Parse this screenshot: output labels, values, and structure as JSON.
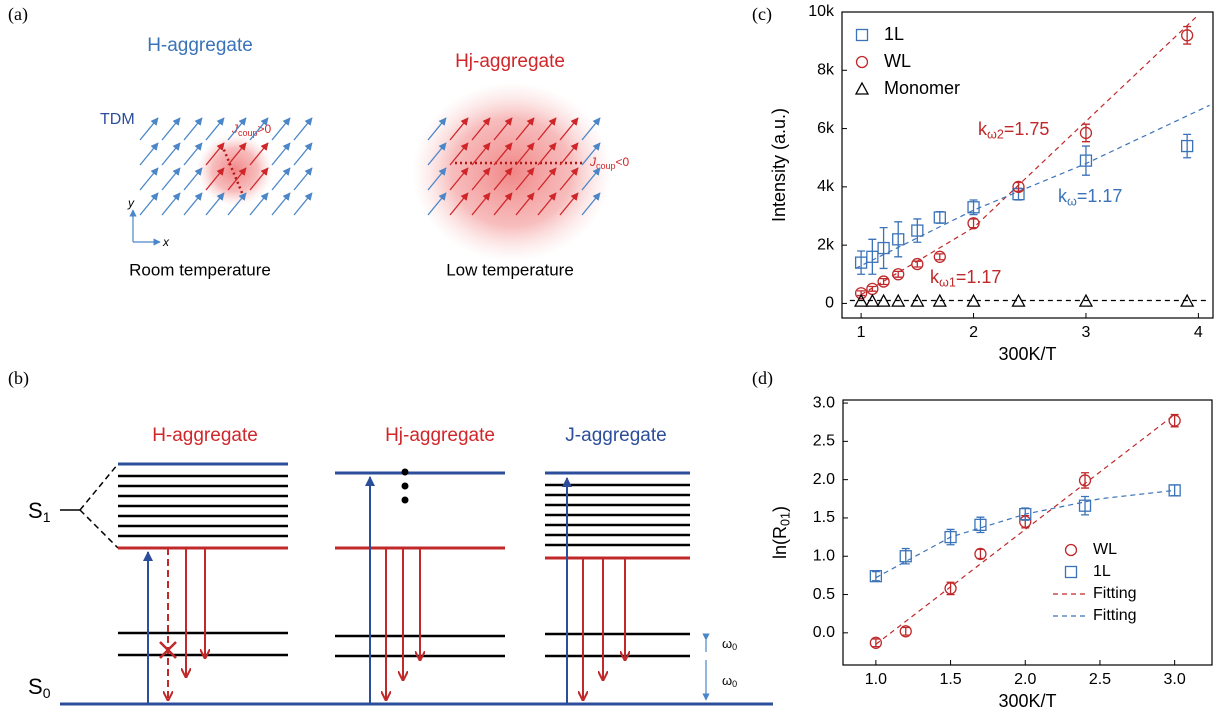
{
  "panels": {
    "a": "(a)",
    "b": "(b)",
    "c": "(c)",
    "d": "(d)"
  },
  "panel_a": {
    "left_title": "H-aggregate",
    "right_title": "Hj-aggregate",
    "tdm": "TDM",
    "j_left": {
      "j": "J",
      "sub": "coup",
      "rel": ">0"
    },
    "j_right": {
      "j": "J",
      "sub": "coup",
      "rel": "<0"
    },
    "axis_y": "y",
    "axis_x": "x",
    "left_caption": "Room temperature",
    "right_caption": "Low temperature"
  },
  "panel_b": {
    "titles": [
      "H-aggregate",
      "Hj-aggregate",
      "J-aggregate"
    ],
    "s1": {
      "s": "S",
      "sub": "1"
    },
    "s0": {
      "s": "S",
      "sub": "0"
    },
    "omega": {
      "w": "ω",
      "sub": "0"
    }
  },
  "chart_data": [
    {
      "type": "scatter",
      "xlabel": "300K/T",
      "ylabel": "Intensity (a.u.)",
      "xlim": [
        0.83,
        4.13
      ],
      "ylim": [
        -500,
        10000
      ],
      "xticks": [
        1,
        2,
        3,
        4
      ],
      "yticks": [
        0,
        {
          "value": 2000,
          "label": "2k"
        },
        {
          "value": 4000,
          "label": "4k"
        },
        {
          "value": 6000,
          "label": "6k"
        },
        {
          "value": 8000,
          "label": "8k"
        },
        {
          "value": 10000,
          "label": "10k"
        }
      ],
      "legend": "upper left",
      "series": [
        {
          "name": "1L",
          "color": "#3b73b9",
          "marker": "square",
          "x": [
            1,
            1.1,
            1.2,
            1.33,
            1.5,
            1.7,
            2,
            2.4,
            3,
            3.9
          ],
          "values": [
            1400,
            1600,
            1900,
            2200,
            2500,
            2950,
            3300,
            3750,
            4900,
            5400
          ],
          "errors": [
            400,
            600,
            700,
            600,
            400,
            200,
            250,
            200,
            500,
            400
          ]
        },
        {
          "name": "WL",
          "color": "#c0282a",
          "marker": "circle",
          "x": [
            1,
            1.1,
            1.2,
            1.33,
            1.5,
            1.7,
            2,
            2.4,
            3,
            3.9
          ],
          "values": [
            350,
            500,
            750,
            1000,
            1350,
            1600,
            2750,
            4000,
            5850,
            9200
          ],
          "errors": [
            80,
            80,
            100,
            100,
            100,
            100,
            150,
            150,
            300,
            300
          ]
        },
        {
          "name": "Monomer",
          "color": "#000000",
          "marker": "triangle",
          "x": [
            1,
            1.1,
            1.2,
            1.33,
            1.5,
            1.7,
            2,
            2.4,
            3,
            3.9
          ],
          "values": [
            80,
            80,
            80,
            80,
            80,
            80,
            80,
            80,
            80,
            80
          ]
        }
      ],
      "fit_lines": [
        {
          "color": "#c0282a",
          "x": [
            1,
            2,
            4
          ],
          "values": [
            300,
            2600,
            9900
          ]
        },
        {
          "color": "#3b73b9",
          "x": [
            0.95,
            2,
            3,
            4.1
          ],
          "values": [
            1200,
            3200,
            4800,
            6800
          ]
        },
        {
          "color": "#000000",
          "x": [
            0.9,
            4.1
          ],
          "values": [
            100,
            100
          ]
        }
      ],
      "annotations": [
        {
          "base": "k",
          "sub": "ω2",
          "tail": "=1.75",
          "color": "#c0282a"
        },
        {
          "base": "k",
          "sub": "ω",
          "tail": "=1.17",
          "color": "#3b73b9"
        },
        {
          "base": "k",
          "sub": "ω1",
          "tail": "=1.17",
          "color": "#c0282a"
        }
      ]
    },
    {
      "type": "scatter",
      "xlabel": "300K/T",
      "ylabel": {
        "base": "ln(R",
        "sub": "01",
        "tail": ")"
      },
      "xlim": [
        0.78,
        3.25
      ],
      "ylim": [
        -0.42,
        3.04
      ],
      "xticks": [
        {
          "value": 1,
          "label": "1.0"
        },
        1.5,
        {
          "value": 2,
          "label": "2.0"
        },
        2.5,
        {
          "value": 3,
          "label": "3.0"
        }
      ],
      "yticks": [
        {
          "value": 0,
          "label": "0.0"
        },
        0.5,
        {
          "value": 1,
          "label": "1.0"
        },
        1.5,
        {
          "value": 2,
          "label": "2.0"
        },
        2.5,
        {
          "value": 3,
          "label": "3.0"
        }
      ],
      "legend": "lower right",
      "series": [
        {
          "name": "WL",
          "color": "#c0282a",
          "marker": "circle",
          "x": [
            1,
            1.2,
            1.5,
            1.7,
            2,
            2.4,
            3
          ],
          "values": [
            -0.13,
            0.02,
            0.58,
            1.03,
            1.45,
            1.99,
            2.77
          ],
          "errors": [
            0.05,
            0.05,
            0.08,
            0.06,
            0.08,
            0.1,
            0.08
          ]
        },
        {
          "name": "1L",
          "color": "#3b73b9",
          "marker": "square",
          "x": [
            1,
            1.2,
            1.5,
            1.7,
            2,
            2.4,
            3
          ],
          "values": [
            0.74,
            1.0,
            1.25,
            1.41,
            1.55,
            1.66,
            1.86
          ],
          "errors": [
            0.06,
            0.1,
            0.1,
            0.1,
            0.08,
            0.12,
            0.07
          ]
        }
      ],
      "fit_lines": [
        {
          "name": "Fitting",
          "color": "#c0282a",
          "x": [
            1,
            3
          ],
          "values": [
            -0.15,
            2.85
          ]
        },
        {
          "name": "Fitting",
          "color": "#3b73b9",
          "x": [
            1,
            1.5,
            2,
            2.5,
            3
          ],
          "values": [
            0.72,
            1.25,
            1.55,
            1.75,
            1.86
          ]
        }
      ]
    }
  ]
}
